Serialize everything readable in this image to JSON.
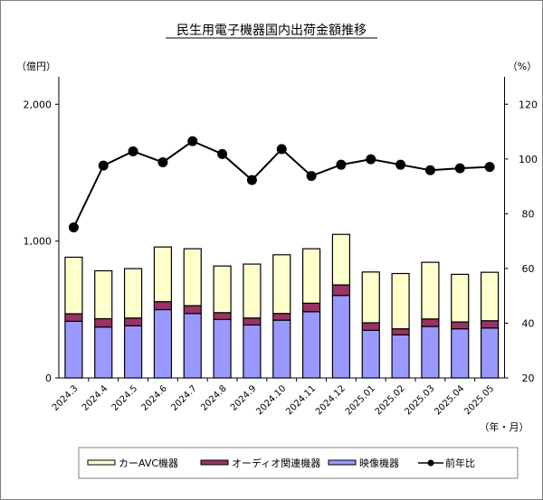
{
  "chart_data": {
    "type": "bar",
    "title": "民生用電子機器国内出荷金額推移",
    "ylabel": "（億円）",
    "y2label": "（%）",
    "xlabel": "（年・月）",
    "ylim": [
      0,
      2200
    ],
    "y2lim": [
      20,
      130
    ],
    "yticks": [
      0,
      1000,
      2000
    ],
    "ytick_labels": [
      "0",
      "1,000",
      "2,000"
    ],
    "y2ticks": [
      20,
      40,
      60,
      80,
      100,
      120
    ],
    "y2tick_labels": [
      "20",
      "40",
      "60",
      "80",
      "100",
      "120"
    ],
    "categories": [
      "2024.3",
      "2024.4",
      "2024.5",
      "2024.6",
      "2024.7",
      "2024.8",
      "2024.9",
      "2024.10",
      "2024.11",
      "2024.12",
      "2025.01",
      "2025.02",
      "2025.03",
      "2025.04",
      "2025.05"
    ],
    "series": [
      {
        "name": "映像機器",
        "type": "bar",
        "color": "#9999ff",
        "values": [
          414,
          372,
          381,
          499,
          471,
          427,
          387,
          422,
          484,
          603,
          348,
          315,
          376,
          359,
          365
        ]
      },
      {
        "name": "オーディオ関連機器",
        "type": "bar",
        "color": "#993366",
        "values": [
          55,
          61,
          57,
          58,
          57,
          50,
          51,
          49,
          62,
          77,
          55,
          44,
          55,
          50,
          53
        ]
      },
      {
        "name": "カーAVC機器",
        "type": "bar",
        "color": "#ffffcc",
        "values": [
          413,
          350,
          361,
          400,
          416,
          341,
          394,
          429,
          398,
          369,
          371,
          404,
          414,
          348,
          354
        ]
      },
      {
        "name": "前年比",
        "type": "line",
        "axis": "right",
        "color": "#000000",
        "values": [
          75.0,
          97.6,
          102.8,
          98.8,
          106.5,
          101.8,
          92.3,
          103.6,
          93.8,
          97.9,
          99.9,
          97.9,
          95.9,
          96.6,
          97.1
        ]
      }
    ],
    "legend_order": [
      "カーAVC機器",
      "オーディオ関連機器",
      "映像機器",
      "前年比"
    ],
    "legend_position": "bottom",
    "grid": false
  }
}
